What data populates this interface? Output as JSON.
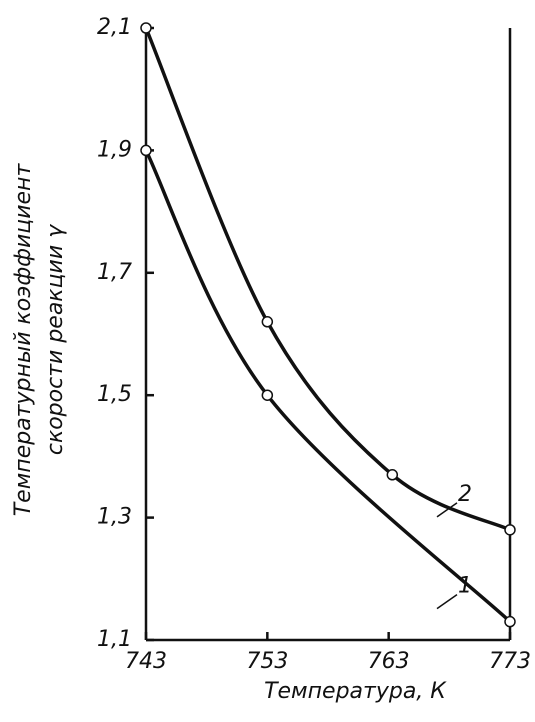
{
  "chart_data": {
    "type": "line",
    "xlabel": "Температура, К",
    "ylabel": [
      "Температурный коэффициент",
      "скорости реакции γ"
    ],
    "xlim": [
      743,
      773
    ],
    "xticks": [
      743,
      753,
      763,
      773
    ],
    "ylim": [
      1.1,
      2.1
    ],
    "yticks": [
      {
        "value": 1.1,
        "label": "1,1"
      },
      {
        "value": 1.3,
        "label": "1,3"
      },
      {
        "value": 1.5,
        "label": "1,5"
      },
      {
        "value": 1.7,
        "label": "1,7"
      },
      {
        "value": 1.9,
        "label": "1,9"
      },
      {
        "value": 2.1,
        "label": "2,1"
      }
    ],
    "color": "#111111",
    "series": [
      {
        "name": "1",
        "x": [
          743,
          753,
          773
        ],
        "values": [
          1.9,
          1.5,
          1.13
        ]
      },
      {
        "name": "2",
        "x": [
          743,
          753,
          763.3,
          773
        ],
        "values": [
          2.1,
          1.62,
          1.37,
          1.28
        ]
      }
    ]
  }
}
